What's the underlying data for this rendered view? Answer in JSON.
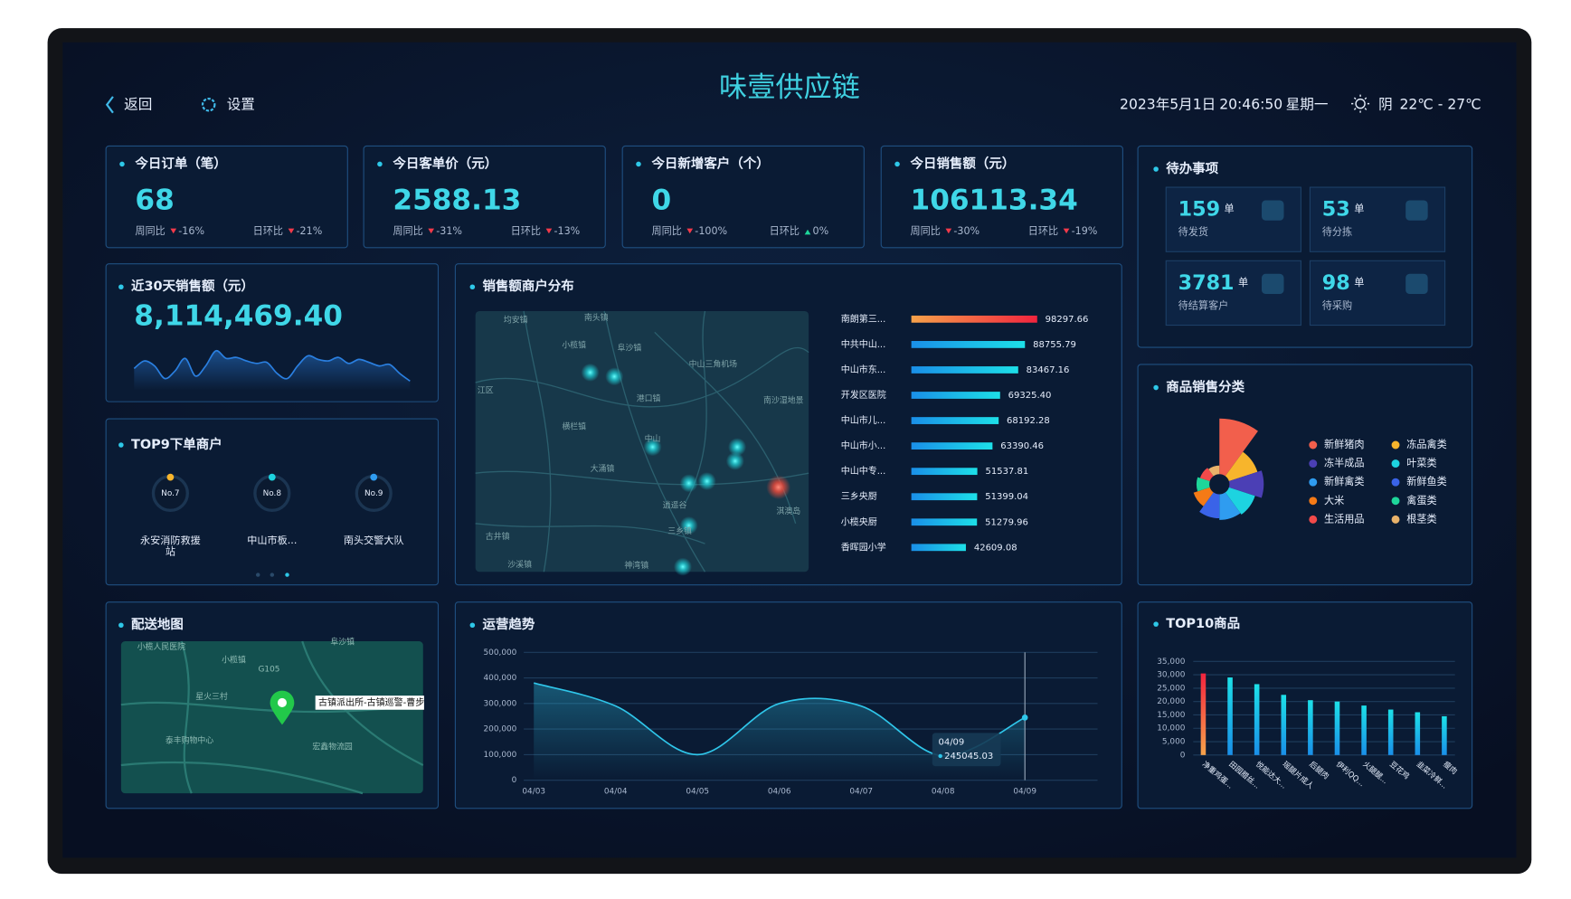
{
  "header": {
    "back": "返回",
    "settings": "设置",
    "title": "味壹供应链",
    "date": "2023年5月1日",
    "time": "20:46:50",
    "weekday": "星期一",
    "weather": "阴",
    "temperature": "22℃ - 27℃"
  },
  "kpis": [
    {
      "title": "今日订单（笔）",
      "value": "68",
      "wow_label": "周同比",
      "wow": "-16%",
      "dod_label": "日环比",
      "dod": "-21%"
    },
    {
      "title": "今日客单价（元）",
      "value": "2588.13",
      "wow_label": "周同比",
      "wow": "-31%",
      "dod_label": "日环比",
      "dod": "-13%"
    },
    {
      "title": "今日新增客户（个）",
      "value": "0",
      "wow_label": "周同比",
      "wow": "-100%",
      "dod_label": "日环比",
      "dod": "0%"
    },
    {
      "title": "今日销售额（元）",
      "value": "106113.34",
      "wow_label": "周同比",
      "wow": "-30%",
      "dod_label": "日环比",
      "dod": "-19%"
    }
  ],
  "sales_30d": {
    "title": "近30天销售额（元）",
    "value": "8,114,469.40"
  },
  "top9": {
    "title": "TOP9下单商户",
    "items": [
      {
        "rank": "No.7",
        "name": "永安消防救援站"
      },
      {
        "rank": "No.8",
        "name": "中山市板..."
      },
      {
        "rank": "No.9",
        "name": "南头交警大队"
      }
    ]
  },
  "todo": {
    "title": "待办事项",
    "items": [
      {
        "value": "159",
        "unit": "单",
        "label": "待发货"
      },
      {
        "value": "53",
        "unit": "单",
        "label": "待分拣"
      },
      {
        "value": "3781",
        "unit": "单",
        "label": "待结算客户"
      },
      {
        "value": "98",
        "unit": "单",
        "label": "待采购"
      }
    ]
  },
  "sales_map": {
    "labels": [
      "均安镇",
      "南头镇",
      "小榄镇",
      "阜沙镇",
      "中山三角机场",
      "江区",
      "港口镇",
      "横栏镇",
      "中山",
      "大涌镇",
      "逍遥谷",
      "三乡镇",
      "淇澳岛",
      "神湾镇",
      "沙溪镇",
      "古井镇",
      "南沙湿地景"
    ]
  },
  "delivery_map": {
    "title": "配送地图",
    "labels": [
      "小榄人民医院",
      "小榄镇",
      "G105",
      "星火三村",
      "泰丰购物中心",
      "宏鑫物流园",
      "阜沙镇"
    ],
    "popup": "古镇派出所-古镇巡警-曹步"
  },
  "chart_data": [
    {
      "type": "area",
      "values": [
        40,
        55,
        45,
        20,
        35,
        60,
        25,
        45,
        75,
        60,
        62,
        55,
        50,
        52,
        30,
        20,
        45,
        65,
        58,
        55,
        62,
        50,
        58,
        52,
        45,
        48,
        30,
        15
      ],
      "color": "#2a7fe0"
    },
    {
      "type": "bar",
      "orientation": "horizontal",
      "title": "销售额商户分布",
      "categories": [
        "南朗第三...",
        "中共中山...",
        "中山市东...",
        "开发区医院",
        "中山市儿...",
        "中山市小...",
        "中山中专...",
        "三乡央厨",
        "小榄央厨",
        "香晖园小学"
      ],
      "values": [
        98297.66,
        88755.79,
        83467.16,
        69325.4,
        68192.28,
        63390.46,
        51537.81,
        51399.04,
        51279.96,
        42609.08
      ],
      "value_labels": [
        "98297.66",
        "88755.79",
        "83467.16",
        "69325.40",
        "68192.28",
        "63390.46",
        "51537.81",
        "51399.04",
        "51279.96",
        "42609.08"
      ],
      "color": "#1ec8e6",
      "highlight_color": "#f23a4a"
    },
    {
      "type": "pie",
      "rose": true,
      "title": "商品销售分类",
      "categories": [
        "新鲜猪肉",
        "冻品禽类",
        "冻半成品",
        "叶菜类",
        "新鲜禽类",
        "新鲜鱼类",
        "大米",
        "禽蛋类",
        "生活用品",
        "根茎类"
      ],
      "values": [
        65,
        35,
        40,
        32,
        30,
        28,
        20,
        15,
        12,
        10
      ],
      "colors": [
        "#f25f4c",
        "#f7b52c",
        "#4b3fb5",
        "#1dd3e0",
        "#2f9cf0",
        "#3a63e8",
        "#f57a16",
        "#1ed69a",
        "#f24a4a",
        "#e8b26a"
      ]
    },
    {
      "type": "line",
      "title": "运营趋势",
      "categories": [
        "04/03",
        "04/04",
        "04/05",
        "04/06",
        "04/07",
        "04/08",
        "04/09"
      ],
      "values": [
        380000,
        290000,
        100000,
        300000,
        290000,
        95000,
        245045.03
      ],
      "ylim": [
        0,
        500000
      ],
      "yticks": [
        0,
        {
          "value": 100000,
          "label": "100,000"
        },
        {
          "value": 200000,
          "label": "200,000"
        },
        {
          "value": 300000,
          "label": "300,000"
        },
        {
          "value": 400000,
          "label": "400,000"
        },
        {
          "value": 500000,
          "label": "500,000"
        }
      ],
      "grid": true,
      "color": "#2fc6ea",
      "tooltip_index": 6
    },
    {
      "type": "bar",
      "title": "TOP10商品",
      "categories": [
        "净重鸡蛋...",
        "田园腊丝...",
        "悦能达大...",
        "瑶腿片成人",
        "后腿肉",
        "伊利QQ...",
        "火腿腿...",
        "豆花鸡",
        "韭菜冷鲜...",
        "瘦肉"
      ],
      "values": [
        30500,
        29000,
        26500,
        22500,
        20500,
        20000,
        18500,
        17000,
        16000,
        14500
      ],
      "ylim": [
        0,
        35000
      ],
      "yticks": [
        0,
        {
          "value": 5000,
          "label": "5,000"
        },
        {
          "value": 10000,
          "label": "10,000"
        },
        {
          "value": 15000,
          "label": "15,000"
        },
        {
          "value": 20000,
          "label": "20,000"
        },
        {
          "value": 25000,
          "label": "25,000"
        },
        {
          "value": 30000,
          "label": "30,000"
        },
        {
          "value": 35000,
          "label": "35,000"
        }
      ],
      "grid": true,
      "color": "#17c5e0",
      "highlight_color": "#f0384c"
    }
  ]
}
